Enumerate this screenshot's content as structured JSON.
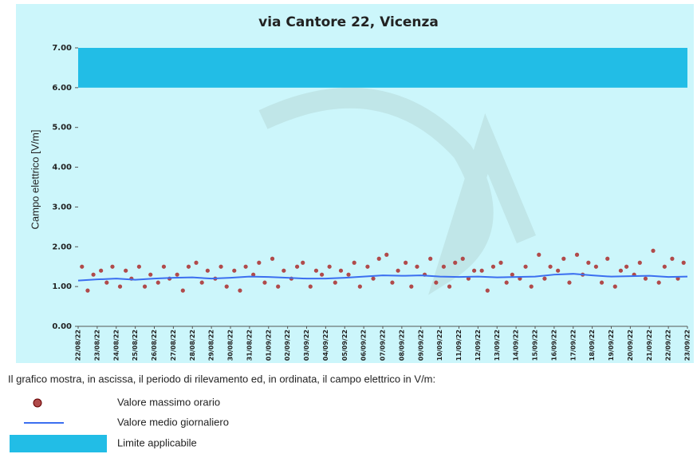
{
  "chart_data": {
    "type": "scatter",
    "title": "via Cantore 22, Vicenza",
    "y_label": "Campo elettrico [V/m]",
    "caption": "Il grafico mostra, in ascissa, il periodo di rilevamento ed, in ordinata, il campo elettrico in V/m:",
    "xlim": [
      0,
      32
    ],
    "ylim": [
      0,
      7
    ],
    "yticks": [
      {
        "value": 0,
        "label": "0.00"
      },
      {
        "value": 1,
        "label": "1.00"
      },
      {
        "value": 2,
        "label": "2.00"
      },
      {
        "value": 3,
        "label": "3.00"
      },
      {
        "value": 4,
        "label": "4.00"
      },
      {
        "value": 5,
        "label": "5.00"
      },
      {
        "value": 6,
        "label": "6.00"
      },
      {
        "value": 7,
        "label": "7.00"
      }
    ],
    "xticks": [
      {
        "value": 0,
        "label": "22/08/22"
      },
      {
        "value": 1,
        "label": "23/08/22"
      },
      {
        "value": 2,
        "label": "24/08/22"
      },
      {
        "value": 3,
        "label": "25/08/22"
      },
      {
        "value": 4,
        "label": "26/08/22"
      },
      {
        "value": 5,
        "label": "27/08/22"
      },
      {
        "value": 6,
        "label": "28/08/22"
      },
      {
        "value": 7,
        "label": "29/08/22"
      },
      {
        "value": 8,
        "label": "30/08/22"
      },
      {
        "value": 9,
        "label": "31/08/22"
      },
      {
        "value": 10,
        "label": "01/09/22"
      },
      {
        "value": 11,
        "label": "02/09/22"
      },
      {
        "value": 12,
        "label": "03/09/22"
      },
      {
        "value": 13,
        "label": "04/09/22"
      },
      {
        "value": 14,
        "label": "05/09/22"
      },
      {
        "value": 15,
        "label": "06/09/22"
      },
      {
        "value": 16,
        "label": "07/09/22"
      },
      {
        "value": 17,
        "label": "08/09/22"
      },
      {
        "value": 18,
        "label": "09/09/22"
      },
      {
        "value": 19,
        "label": "10/09/22"
      },
      {
        "value": 20,
        "label": "11/09/22"
      },
      {
        "value": 21,
        "label": "12/09/22"
      },
      {
        "value": 22,
        "label": "13/09/22"
      },
      {
        "value": 23,
        "label": "14/09/22"
      },
      {
        "value": 24,
        "label": "15/09/22"
      },
      {
        "value": 25,
        "label": "16/09/22"
      },
      {
        "value": 26,
        "label": "17/09/22"
      },
      {
        "value": 27,
        "label": "18/09/22"
      },
      {
        "value": 28,
        "label": "19/09/22"
      },
      {
        "value": 29,
        "label": "20/09/22"
      },
      {
        "value": 30,
        "label": "21/09/22"
      },
      {
        "value": 31,
        "label": "22/09/22"
      },
      {
        "value": 32,
        "label": "23/09/22"
      }
    ],
    "limit": {
      "name": "Limite applicabile",
      "from": 6,
      "to": 7,
      "color": "#22bde6"
    },
    "series": [
      {
        "name": "Valore massimo orario",
        "color": "#b04a4a",
        "x": [
          0.2,
          0.5,
          0.8,
          1.2,
          1.5,
          1.8,
          2.2,
          2.5,
          2.8,
          3.2,
          3.5,
          3.8,
          4.2,
          4.5,
          4.8,
          5.2,
          5.5,
          5.8,
          6.2,
          6.5,
          6.8,
          7.2,
          7.5,
          7.8,
          8.2,
          8.5,
          8.8,
          9.2,
          9.5,
          9.8,
          10.2,
          10.5,
          10.8,
          11.2,
          11.5,
          11.8,
          12.2,
          12.5,
          12.8,
          13.2,
          13.5,
          13.8,
          14.2,
          14.5,
          14.8,
          15.2,
          15.5,
          15.8,
          16.2,
          16.5,
          16.8,
          17.2,
          17.5,
          17.8,
          18.2,
          18.5,
          18.8,
          19.2,
          19.5,
          19.8,
          20.2,
          20.5,
          20.8,
          21.2,
          21.5,
          21.8,
          22.2,
          22.5,
          22.8,
          23.2,
          23.5,
          23.8,
          24.2,
          24.5,
          24.8,
          25.2,
          25.5,
          25.8,
          26.2,
          26.5,
          26.8,
          27.2,
          27.5,
          27.8,
          28.2,
          28.5,
          28.8,
          29.2,
          29.5,
          29.8,
          30.2,
          30.5,
          30.8,
          31.2,
          31.5,
          31.8
        ],
        "values": [
          1.5,
          0.9,
          1.3,
          1.4,
          1.1,
          1.5,
          1.0,
          1.4,
          1.2,
          1.5,
          1.0,
          1.3,
          1.1,
          1.5,
          1.2,
          1.3,
          0.9,
          1.5,
          1.6,
          1.1,
          1.4,
          1.2,
          1.5,
          1.0,
          1.4,
          0.9,
          1.5,
          1.3,
          1.6,
          1.1,
          1.7,
          1.0,
          1.4,
          1.2,
          1.5,
          1.6,
          1.0,
          1.4,
          1.3,
          1.5,
          1.1,
          1.4,
          1.3,
          1.6,
          1.0,
          1.5,
          1.2,
          1.7,
          1.8,
          1.1,
          1.4,
          1.6,
          1.0,
          1.5,
          1.3,
          1.7,
          1.1,
          1.5,
          1.0,
          1.6,
          1.7,
          1.2,
          1.4,
          1.4,
          0.9,
          1.5,
          1.6,
          1.1,
          1.3,
          1.2,
          1.5,
          1.0,
          1.8,
          1.2,
          1.5,
          1.4,
          1.7,
          1.1,
          1.8,
          1.3,
          1.6,
          1.5,
          1.1,
          1.7,
          1.0,
          1.4,
          1.5,
          1.3,
          1.6,
          1.2,
          1.9,
          1.1,
          1.5,
          1.7,
          1.2,
          1.6
        ]
      },
      {
        "name": "Valore medio giornaliero",
        "color": "#3b6ff0",
        "x": [
          0,
          1,
          2,
          3,
          4,
          5,
          6,
          7,
          8,
          9,
          10,
          11,
          12,
          13,
          14,
          15,
          16,
          17,
          18,
          19,
          20,
          21,
          22,
          23,
          24,
          25,
          26,
          27,
          28,
          29,
          30,
          31,
          32
        ],
        "values": [
          1.15,
          1.18,
          1.2,
          1.17,
          1.2,
          1.22,
          1.23,
          1.2,
          1.22,
          1.25,
          1.24,
          1.22,
          1.2,
          1.2,
          1.22,
          1.25,
          1.28,
          1.27,
          1.28,
          1.25,
          1.24,
          1.25,
          1.23,
          1.24,
          1.25,
          1.3,
          1.32,
          1.28,
          1.25,
          1.26,
          1.27,
          1.24,
          1.25
        ]
      }
    ]
  }
}
